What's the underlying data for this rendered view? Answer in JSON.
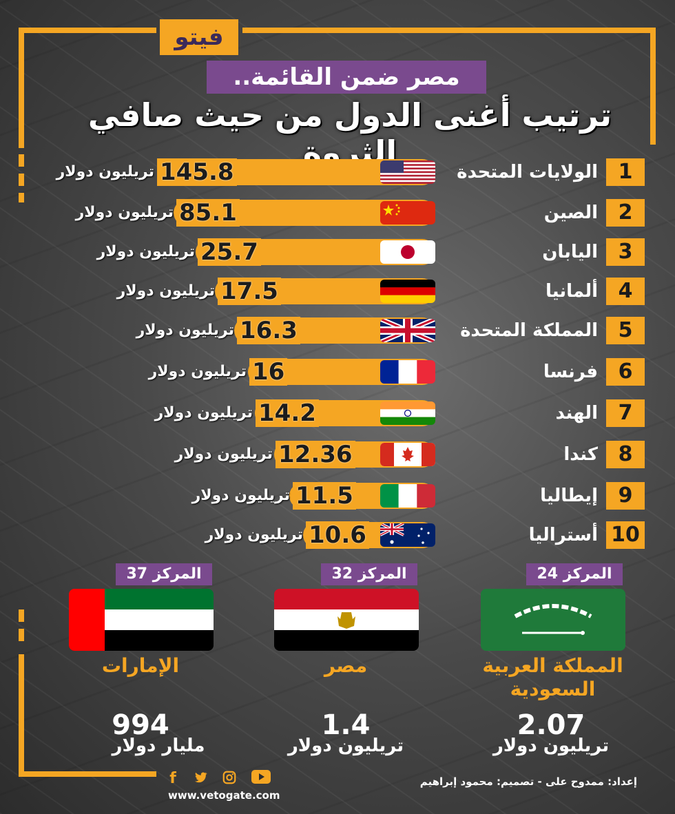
{
  "brand": {
    "logo_text": "فيتو",
    "website": "www.vetogate.com"
  },
  "header": {
    "subtitle": "مصر ضمن القائمة..",
    "title": "ترتيب أغنى الدول من حيث صافي الثروة"
  },
  "colors": {
    "accent": "#f5a623",
    "purple": "#7a4a8e",
    "dark": "#1c1c1c"
  },
  "ranking": [
    {
      "rank": "1",
      "country": "الولايات المتحدة",
      "value": "145.8",
      "unit": "تريليون دولار",
      "flag": "usa-flag"
    },
    {
      "rank": "2",
      "country": "الصين",
      "value": "85.1",
      "unit": "تريليون دولار",
      "flag": "china-flag"
    },
    {
      "rank": "3",
      "country": "اليابان",
      "value": "25.7",
      "unit": "تريليون دولار",
      "flag": "japan-flag"
    },
    {
      "rank": "4",
      "country": "ألمانيا",
      "value": "17.5",
      "unit": "تريليون دولار",
      "flag": "germany-flag"
    },
    {
      "rank": "5",
      "country": "المملكة المتحدة",
      "value": "16.3",
      "unit": "تريليون دولار",
      "flag": "uk-flag"
    },
    {
      "rank": "6",
      "country": "فرنسا",
      "value": "16",
      "unit": "تريليون دولار",
      "flag": "france-flag"
    },
    {
      "rank": "7",
      "country": "الهند",
      "value": "14.2",
      "unit": "تريليون دولار",
      "flag": "india-flag"
    },
    {
      "rank": "8",
      "country": "كندا",
      "value": "12.36",
      "unit": "تريليون دولار",
      "flag": "canada-flag"
    },
    {
      "rank": "9",
      "country": "إيطاليا",
      "value": "11.5",
      "unit": "تريليون دولار",
      "flag": "italy-flag"
    },
    {
      "rank": "10",
      "country": "أستراليا",
      "value": "10.6",
      "unit": "تريليون دولار",
      "flag": "australia-flag"
    }
  ],
  "arab": [
    {
      "position": "المركز 24",
      "name": "المملكة العربية السعودية",
      "value": "2.07",
      "unit": "تريليون دولار",
      "flag": "saudi-flag"
    },
    {
      "position": "المركز 32",
      "name": "مصر",
      "value": "1.4",
      "unit": "تريليون دولار",
      "flag": "egypt-flag"
    },
    {
      "position": "المركز 37",
      "name": "الإمارات",
      "value": "994",
      "unit": "مليار دولار",
      "flag": "uae-flag"
    }
  ],
  "footer": {
    "credits": "إعداد: ممدوح على  -  تصميم: محمود إبراهيم"
  },
  "social_icons": [
    "facebook-icon",
    "twitter-icon",
    "instagram-icon",
    "youtube-icon"
  ]
}
